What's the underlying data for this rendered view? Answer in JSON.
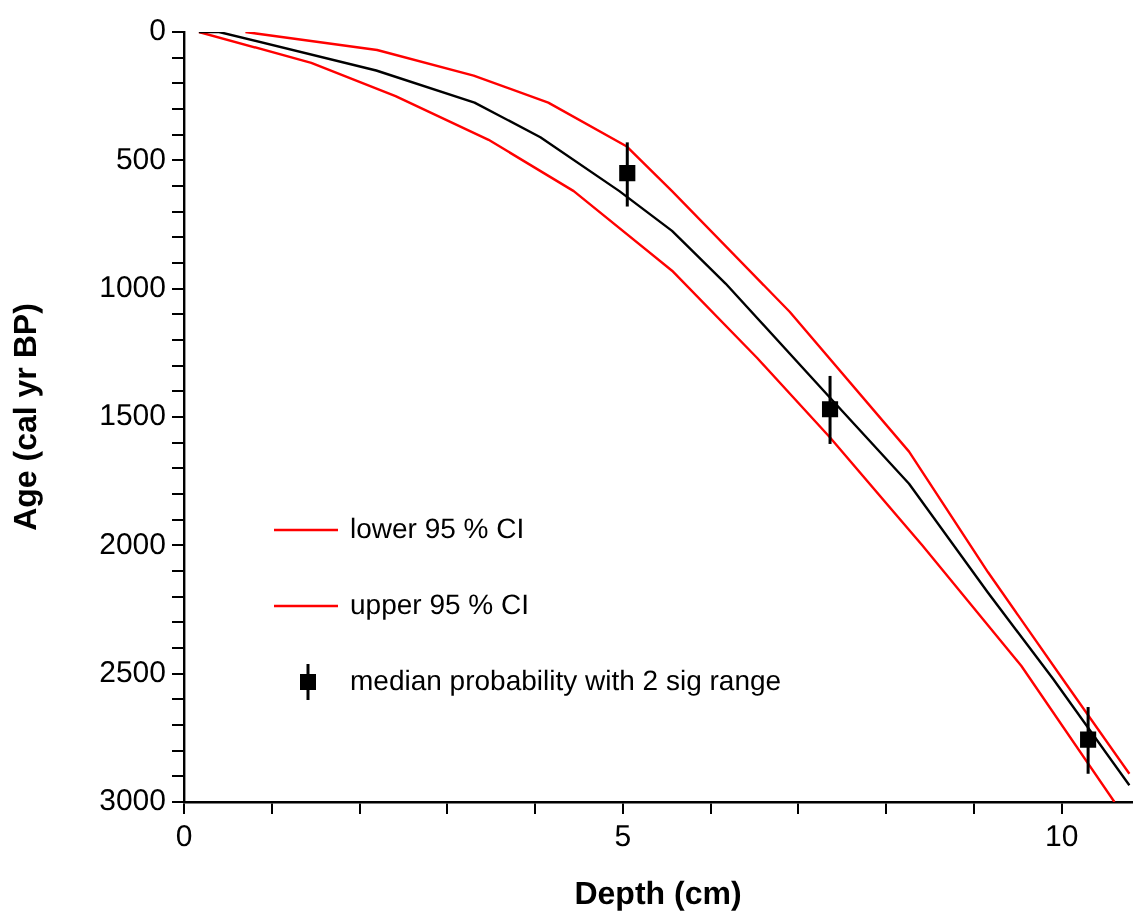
{
  "chart_data": {
    "type": "line",
    "xlabel": "Depth (cm)",
    "ylabel": "Age (cal yr BP)",
    "xlim": [
      0,
      10.8
    ],
    "xticks": [
      0,
      {
        "value": 1,
        "label": null
      },
      {
        "value": 2,
        "label": null
      },
      {
        "value": 3,
        "label": null
      },
      {
        "value": 4,
        "label": null
      },
      5,
      {
        "value": 6,
        "label": null
      },
      {
        "value": 7,
        "label": null
      },
      {
        "value": 8,
        "label": null
      },
      {
        "value": 9,
        "label": null
      },
      10
    ],
    "ylim": [
      3000,
      0
    ],
    "yticks": [
      0,
      {
        "value": 100,
        "label": null
      },
      {
        "value": 200,
        "label": null
      },
      {
        "value": 300,
        "label": null
      },
      {
        "value": 400,
        "label": null
      },
      500,
      {
        "value": 600,
        "label": null
      },
      {
        "value": 700,
        "label": null
      },
      {
        "value": 800,
        "label": null
      },
      {
        "value": 900,
        "label": null
      },
      1000,
      {
        "value": 1100,
        "label": null
      },
      {
        "value": 1200,
        "label": null
      },
      {
        "value": 1300,
        "label": null
      },
      {
        "value": 1400,
        "label": null
      },
      1500,
      {
        "value": 1600,
        "label": null
      },
      {
        "value": 1700,
        "label": null
      },
      {
        "value": 1800,
        "label": null
      },
      {
        "value": 1900,
        "label": null
      },
      2000,
      {
        "value": 2100,
        "label": null
      },
      {
        "value": 2200,
        "label": null
      },
      {
        "value": 2300,
        "label": null
      },
      {
        "value": 2400,
        "label": null
      },
      2500,
      {
        "value": 2600,
        "label": null
      },
      {
        "value": 2700,
        "label": null
      },
      {
        "value": 2800,
        "label": null
      },
      {
        "value": 2900,
        "label": null
      },
      3000
    ],
    "grid": false,
    "legend": "bottom left",
    "line_style": "solid",
    "series": [
      {
        "color": "#000000",
        "marker": "none",
        "x": [
          0.17,
          0.4,
          2.19,
          3.31,
          4.06,
          4.96,
          5.56,
          6.17,
          7.36,
          8.26,
          9.16,
          9.9,
          10.77
        ],
        "values": [
          0,
          0,
          150,
          275,
          410,
          620,
          775,
          980,
          1425,
          1760,
          2185,
          2520,
          2935
        ]
      },
      {
        "name": "lower 95 % CI",
        "color": "#ff0000",
        "marker": "none",
        "x": [
          0.7,
          2.2,
          3.3,
          4.15,
          5.04,
          5.56,
          6.9,
          8.26,
          9.16,
          10.06,
          10.77
        ],
        "values": [
          0,
          70,
          170,
          275,
          445,
          620,
          1090,
          1635,
          2105,
          2545,
          2890
        ]
      },
      {
        "name": "upper 95 % CI",
        "color": "#ff0000",
        "marker": "none",
        "x": [
          0.17,
          1.45,
          2.41,
          3.47,
          4.44,
          5.56,
          6.53,
          7.36,
          8.41,
          9.54,
          10.6
        ],
        "values": [
          0,
          120,
          250,
          420,
          620,
          930,
          1270,
          1580,
          2000,
          2470,
          3000
        ]
      },
      {
        "type": "scatter",
        "name": "median probability with 2 sig range",
        "color": "#000000",
        "marker": "square",
        "x": [
          5.05,
          7.36,
          10.3
        ],
        "values": [
          550,
          1470,
          2757
        ],
        "errors": [
          [
            430,
            680
          ],
          [
            1340,
            1605
          ],
          [
            2630,
            2890
          ]
        ]
      }
    ]
  }
}
